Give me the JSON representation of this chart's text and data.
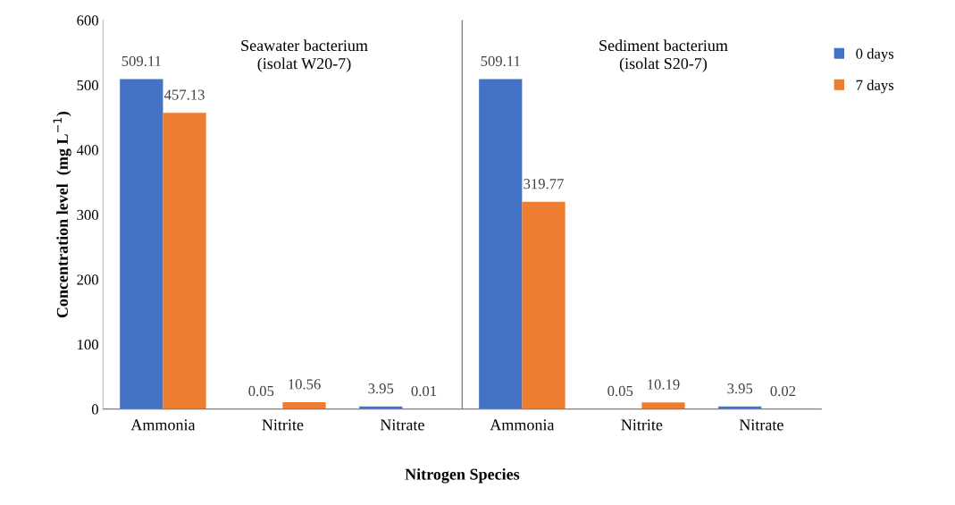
{
  "chart_data": {
    "type": "bar",
    "xlabel": "Nitrogen Species",
    "ylabel": "Concentration level  (mg L$^{−1}$)",
    "categories": [
      "Ammonia",
      "Nitrite",
      "Nitrate",
      "Ammonia",
      "Nitrite",
      "Nitrate"
    ],
    "series": [
      {
        "name": "0 days",
        "color": "#4472c4",
        "values": [
          509.11,
          0.05,
          3.95,
          509.11,
          0.05,
          3.95
        ]
      },
      {
        "name": "7 days",
        "color": "#ed7d31",
        "values": [
          457.13,
          10.56,
          0.01,
          319.77,
          10.19,
          0.02
        ]
      }
    ],
    "ylim": [
      0,
      600
    ],
    "yticks": [
      0,
      100,
      200,
      300,
      400,
      500,
      600
    ],
    "data_labels": true,
    "legend": "right",
    "grid": false,
    "annotations": [
      "Seawater bacterium\n(isolat W20-7)",
      "Sediment bacterium\n(isolat S20-7)"
    ]
  }
}
